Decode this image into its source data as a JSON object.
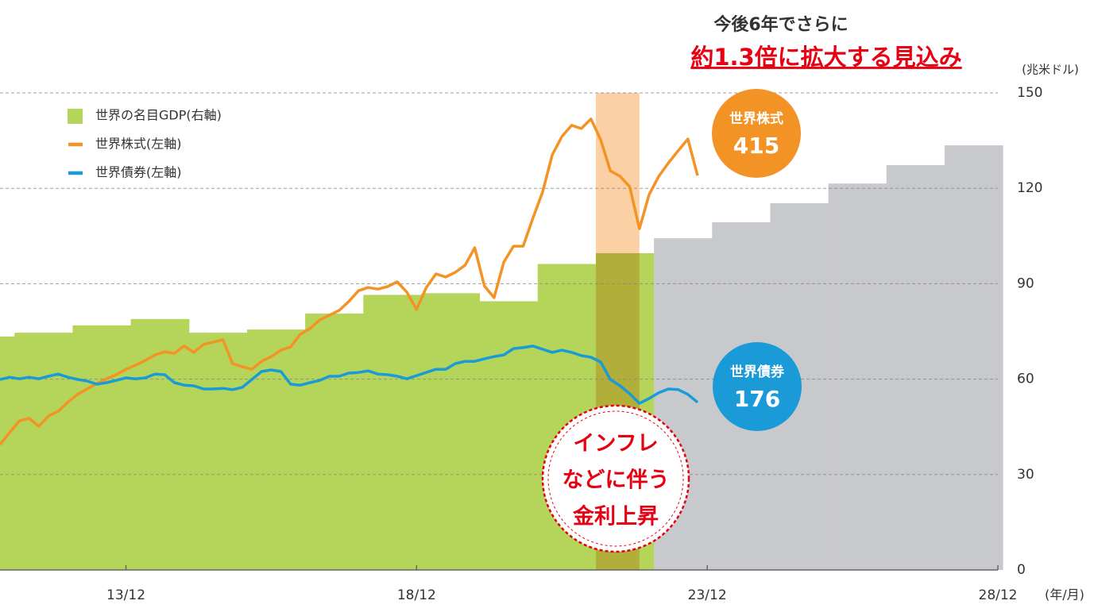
{
  "chart_data": {
    "type": "combo",
    "title": "今後6年でさらに",
    "subtitle": "約1.3倍に拡大する見込み",
    "y_axis_label": "(兆米ドル)",
    "x_axis_label": "(年/月)",
    "y_axis_side": "right",
    "ylim": [
      0,
      150
    ],
    "yticks": [
      0,
      30,
      60,
      90,
      120,
      150
    ],
    "grid": true,
    "xlim": [
      "11/10",
      "28/12"
    ],
    "xticks": [
      "13/12",
      "18/12",
      "23/12",
      "28/12"
    ],
    "highlight": {
      "range": [
        "22/01",
        "22/10"
      ],
      "color": "#fbd0a4"
    },
    "legend": "top-left",
    "series": [
      {
        "name": "世界の名目GDP(右軸)",
        "type": "step-area",
        "color": "#b5d55a",
        "x": [
          "11/10",
          "12/01",
          "13/01",
          "14/01",
          "15/01",
          "16/01",
          "17/01",
          "18/01",
          "19/01",
          "20/01",
          "21/01",
          "22/01"
        ],
        "values": [
          73.4,
          74.6,
          76.9,
          78.9,
          74.6,
          75.6,
          80.6,
          86.5,
          87.0,
          84.5,
          96.2,
          99.6
        ]
      },
      {
        "type": "step-area",
        "color": "#c8c9cd",
        "x": [
          "23/01",
          "24/01",
          "25/01",
          "26/01",
          "27/01",
          "28/01"
        ],
        "values": [
          104.3,
          109.3,
          115.3,
          121.5,
          127.3,
          133.5
        ]
      },
      {
        "name": "世界株式(左軸)",
        "type": "line",
        "color": "#f39325",
        "x": [
          "11/10",
          "11/12",
          "12/02",
          "12/04",
          "12/06",
          "12/08",
          "12/10",
          "12/12",
          "13/02",
          "13/04",
          "13/06",
          "13/08",
          "13/10",
          "13/12",
          "14/02",
          "14/04",
          "14/06",
          "14/08",
          "14/10",
          "14/12",
          "15/02",
          "15/04",
          "15/06",
          "15/08",
          "15/10",
          "15/12",
          "16/02",
          "16/04",
          "16/06",
          "16/08",
          "16/10",
          "16/12",
          "17/02",
          "17/04",
          "17/06",
          "17/08",
          "17/10",
          "17/12",
          "18/02",
          "18/04",
          "18/06",
          "18/08",
          "18/10",
          "18/12",
          "19/02",
          "19/04",
          "19/06",
          "19/08",
          "19/10",
          "19/12",
          "20/02",
          "20/04",
          "20/06",
          "20/08",
          "20/10",
          "20/12",
          "21/02",
          "21/04",
          "21/06",
          "21/08",
          "21/10",
          "21/12",
          "22/02",
          "22/04",
          "22/06",
          "22/08",
          "22/10",
          "22/12",
          "23/02",
          "23/04",
          "23/06",
          "23/08",
          "23/10"
        ],
        "values": [
          39.4,
          43.2,
          46.9,
          47.7,
          45.2,
          48.4,
          49.9,
          52.7,
          55.2,
          56.9,
          58.6,
          60.1,
          61.4,
          63.1,
          64.4,
          65.9,
          67.6,
          68.6,
          68.1,
          70.4,
          68.4,
          70.9,
          71.6,
          72.4,
          64.9,
          63.9,
          63.1,
          65.6,
          67.1,
          69.1,
          70.1,
          74.1,
          75.9,
          78.6,
          80.1,
          81.6,
          84.4,
          87.8,
          88.8,
          88.3,
          89.1,
          90.6,
          87.3,
          81.9,
          88.8,
          93.1,
          92.1,
          93.6,
          95.8,
          101.3,
          89.3,
          85.6,
          96.8,
          101.8,
          101.8,
          110.6,
          118.8,
          130.5,
          136.3,
          139.8,
          138.8,
          141.8,
          135.3,
          125.5,
          123.8,
          120.5,
          107.3,
          118.0,
          123.8,
          128.0,
          131.8,
          135.5,
          124.0
        ]
      },
      {
        "name": "世界債券(左軸)",
        "type": "line",
        "color": "#1a9bd7",
        "x": [
          "11/10",
          "11/12",
          "12/02",
          "12/04",
          "12/06",
          "12/08",
          "12/10",
          "12/12",
          "13/02",
          "13/04",
          "13/06",
          "13/08",
          "13/10",
          "13/12",
          "14/02",
          "14/04",
          "14/06",
          "14/08",
          "14/10",
          "14/12",
          "15/02",
          "15/04",
          "15/06",
          "15/08",
          "15/10",
          "15/12",
          "16/02",
          "16/04",
          "16/06",
          "16/08",
          "16/10",
          "16/12",
          "17/02",
          "17/04",
          "17/06",
          "17/08",
          "17/10",
          "17/12",
          "18/02",
          "18/04",
          "18/06",
          "18/08",
          "18/10",
          "18/12",
          "19/02",
          "19/04",
          "19/06",
          "19/08",
          "19/10",
          "19/12",
          "20/02",
          "20/04",
          "20/06",
          "20/08",
          "20/10",
          "20/12",
          "21/02",
          "21/04",
          "21/06",
          "21/08",
          "21/10",
          "21/12",
          "22/02",
          "22/04",
          "22/06",
          "22/08",
          "22/10",
          "22/12",
          "23/02",
          "23/04",
          "23/06",
          "23/08",
          "23/10"
        ],
        "values": [
          59.9,
          60.6,
          60.1,
          60.6,
          60.1,
          60.9,
          61.6,
          60.6,
          59.9,
          59.4,
          58.4,
          58.9,
          59.6,
          60.4,
          60.1,
          60.4,
          61.6,
          61.4,
          58.9,
          58.1,
          57.9,
          56.9,
          56.9,
          57.1,
          56.7,
          57.4,
          59.9,
          62.4,
          62.9,
          62.4,
          58.4,
          58.1,
          58.9,
          59.6,
          60.9,
          60.9,
          61.9,
          62.1,
          62.6,
          61.6,
          61.4,
          60.9,
          60.1,
          61.1,
          62.1,
          63.1,
          63.1,
          64.9,
          65.6,
          65.6,
          66.4,
          67.1,
          67.6,
          69.6,
          69.9,
          70.4,
          69.4,
          68.4,
          69.1,
          68.4,
          67.4,
          66.9,
          65.4,
          59.9,
          57.9,
          55.4,
          52.4,
          53.9,
          55.7,
          56.9,
          56.7,
          55.2,
          52.7
        ]
      }
    ],
    "callouts": [
      {
        "label": "世界株式",
        "value": 415
      },
      {
        "label": "世界債券",
        "value": 176
      }
    ],
    "annotation": [
      "インフレ",
      "などに伴う",
      "金利上昇"
    ]
  }
}
